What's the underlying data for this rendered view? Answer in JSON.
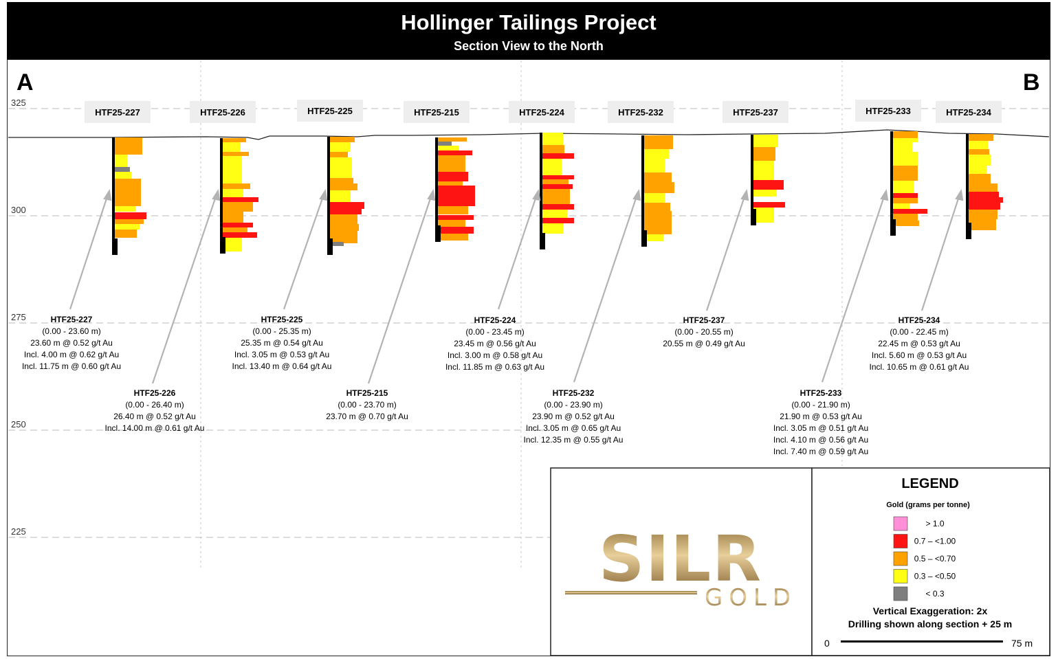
{
  "header": {
    "title": "Hollinger Tailings Project",
    "subtitle": "Section View to the North"
  },
  "section": {
    "start_label": "A",
    "end_label": "B"
  },
  "elevations": [
    "325",
    "300",
    "275",
    "250",
    "225"
  ],
  "colors": {
    "gt_1_0": "#ff8fd6",
    "r07_100": "#ff1414",
    "r05_070": "#ffa200",
    "r03_050": "#ffff14",
    "lt_03": "#7f7f7f",
    "trace": "#000000"
  },
  "holes": [
    {
      "id": "HTF25-227",
      "summary": [
        "HTF25-227",
        "(0.00 - 23.60 m)",
        "23.60 m @ 0.52 g/t Au",
        "Incl. 4.00 m @ 0.62 g/t Au",
        "Incl. 11.75 m @ 0.60 g/t Au"
      ]
    },
    {
      "id": "HTF25-226",
      "summary": [
        "HTF25-226",
        "(0.00 - 26.40 m)",
        "26.40 m @ 0.52 g/t Au",
        "Incl. 14.00 m @ 0.61 g/t Au"
      ]
    },
    {
      "id": "HTF25-225",
      "summary": [
        "HTF25-225",
        "(0.00 - 25.35 m)",
        "25.35 m @ 0.54 g/t Au",
        "Incl. 3.05 m @ 0.53 g/t Au",
        "Incl. 13.40 m @ 0.64 g/t Au"
      ]
    },
    {
      "id": "HTF25-215",
      "summary": [
        "HTF25-215",
        "(0.00 - 23.70 m)",
        "23.70 m @ 0.70 g/t Au"
      ]
    },
    {
      "id": "HTF25-224",
      "summary": [
        "HTF25-224",
        "(0.00 - 23.45 m)",
        "23.45 m @ 0.56 g/t Au",
        "Incl. 3.00 m @ 0.58 g/t Au",
        "Incl. 11.85 m @ 0.63 g/t Au"
      ]
    },
    {
      "id": "HTF25-232",
      "summary": [
        "HTF25-232",
        "(0.00 - 23.90 m)",
        "23.90 m @ 0.52 g/t Au",
        "Incl. 3.05 m @ 0.65 g/t Au",
        "Incl. 12.35 m @ 0.55 g/t Au"
      ]
    },
    {
      "id": "HTF25-237",
      "summary": [
        "HTF25-237",
        "(0.00 - 20.55 m)",
        "20.55 m @ 0.49 g/t Au"
      ]
    },
    {
      "id": "HTF25-233",
      "summary": [
        "HTF25-233",
        "(0.00 - 21.90 m)",
        "21.90 m @ 0.53 g/t Au",
        "Incl. 3.05 m @ 0.51 g/t Au",
        "Incl. 4.10 m @ 0.56 g/t Au",
        "Incl. 7.40 m @ 0.59 g/t Au"
      ]
    },
    {
      "id": "HTF25-234",
      "summary": [
        "HTF25-234",
        "(0.00 - 22.45 m)",
        "22.45 m @ 0.53 g/t Au",
        "Incl. 5.60 m @ 0.53 g/t Au",
        "Incl. 10.65 m @ 0.61 g/t Au"
      ]
    }
  ],
  "legend": {
    "title": "LEGEND",
    "subtitle": "Gold (grams per tonne)",
    "items": [
      {
        "label": "> 1.0",
        "color": "#ff8fd6"
      },
      {
        "label": "0.7 – <1.00",
        "color": "#ff1414"
      },
      {
        "label": "0.5 – <0.70",
        "color": "#ffa200"
      },
      {
        "label": "0.3 – <0.50",
        "color": "#ffff14"
      },
      {
        "label": "< 0.3",
        "color": "#7f7f7f"
      }
    ],
    "vertical_exaggeration": "Vertical Exaggeration: 2x",
    "drilling_note": "Drilling shown along section + 25 m",
    "scale_start": "0",
    "scale_end": "75 m"
  },
  "logo": {
    "top_text": "SILR",
    "bottom_text": "GOLD"
  }
}
